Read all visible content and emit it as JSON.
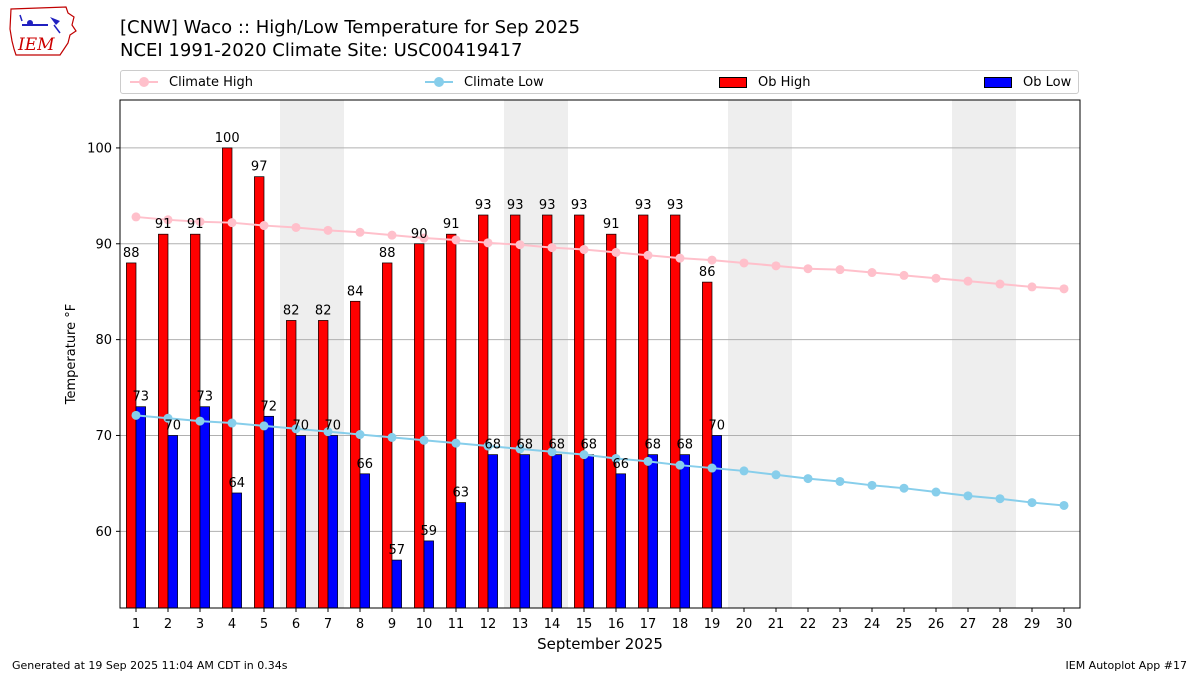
{
  "header": {
    "title_line1": "[CNW] Waco :: High/Low Temperature for Sep 2025",
    "title_line2": "NCEI 1991-2020 Climate Site: USC00419417"
  },
  "logo": {
    "text": "IEM"
  },
  "footer": {
    "left": "Generated at 19 Sep 2025 11:04 AM CDT in 0.34s",
    "right": "IEM Autoplot App #17"
  },
  "legend": {
    "climate_high": "Climate High",
    "climate_low": "Climate Low",
    "ob_high": "Ob High",
    "ob_low": "Ob Low"
  },
  "colors": {
    "ob_high": "#ff0000",
    "ob_low": "#0000ff",
    "climate_high": "#ffc0cb",
    "climate_low": "#87ceeb",
    "weekend_shade": "#eeeeee",
    "grid": "#b0b0b0"
  },
  "chart_data": {
    "type": "bar",
    "xlabel": "September 2025",
    "ylabel": "Temperature °F",
    "ylim": [
      52,
      105
    ],
    "yticks": [
      60,
      70,
      80,
      90,
      100
    ],
    "days": [
      1,
      2,
      3,
      4,
      5,
      6,
      7,
      8,
      9,
      10,
      11,
      12,
      13,
      14,
      15,
      16,
      17,
      18,
      19,
      20,
      21,
      22,
      23,
      24,
      25,
      26,
      27,
      28,
      29,
      30
    ],
    "weekend_shading": [
      [
        6,
        7
      ],
      [
        13,
        14
      ],
      [
        20,
        21
      ],
      [
        27,
        28
      ]
    ],
    "grid": "horizontal",
    "legend_position": "top",
    "series": [
      {
        "name": "Ob High",
        "type": "bar",
        "values": [
          88,
          91,
          91,
          100,
          97,
          82,
          82,
          84,
          88,
          90,
          91,
          93,
          93,
          93,
          93,
          91,
          93,
          93,
          86
        ]
      },
      {
        "name": "Ob Low",
        "type": "bar",
        "values": [
          73,
          70,
          73,
          64,
          72,
          70,
          70,
          66,
          57,
          59,
          63,
          68,
          68,
          68,
          68,
          66,
          68,
          68,
          70
        ]
      },
      {
        "name": "Climate High",
        "type": "line",
        "values": [
          92.8,
          92.5,
          92.3,
          92.2,
          91.9,
          91.7,
          91.4,
          91.2,
          90.9,
          90.6,
          90.4,
          90.1,
          89.9,
          89.6,
          89.4,
          89.1,
          88.8,
          88.5,
          88.3,
          88.0,
          87.7,
          87.4,
          87.3,
          87.0,
          86.7,
          86.4,
          86.1,
          85.8,
          85.5,
          85.3
        ]
      },
      {
        "name": "Climate Low",
        "type": "line",
        "values": [
          72.1,
          71.8,
          71.5,
          71.3,
          71.0,
          70.7,
          70.4,
          70.1,
          69.8,
          69.5,
          69.2,
          68.9,
          68.6,
          68.3,
          68.0,
          67.6,
          67.3,
          66.9,
          66.6,
          66.3,
          65.9,
          65.5,
          65.2,
          64.8,
          64.5,
          64.1,
          63.7,
          63.4,
          63.0,
          62.7
        ]
      }
    ]
  }
}
